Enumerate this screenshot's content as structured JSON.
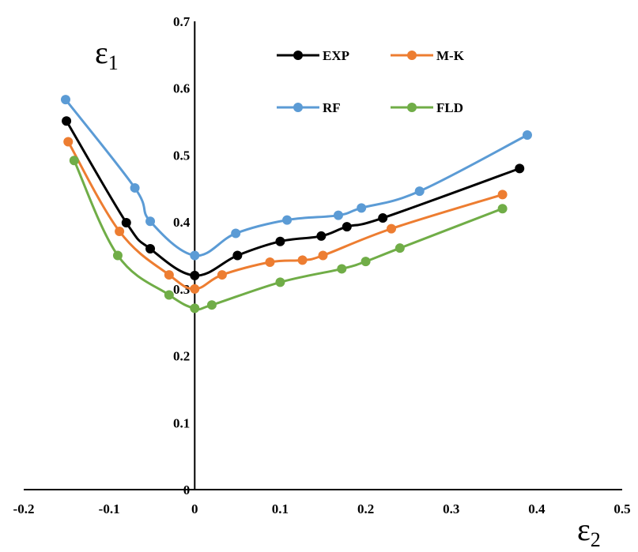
{
  "chart_data": {
    "type": "line",
    "title": "",
    "xlabel": {
      "base": "ε",
      "sub": "2"
    },
    "ylabel": {
      "base": "ε",
      "sub": "1"
    },
    "xlim": [
      -0.2,
      0.5
    ],
    "ylim": [
      0,
      0.7
    ],
    "x_ticks": [
      -0.2,
      -0.1,
      0,
      0.1,
      0.2,
      0.3,
      0.4,
      0.5
    ],
    "y_ticks": [
      0,
      0.1,
      0.2,
      0.3,
      0.4,
      0.5,
      0.6,
      0.7
    ],
    "grid": false,
    "legend_position": "top-center",
    "series": [
      {
        "name": "EXP",
        "color": "#000000",
        "x": [
          -0.15,
          -0.08,
          -0.052,
          0,
          0.05,
          0.1,
          0.148,
          0.178,
          0.22,
          0.38
        ],
        "y": [
          0.551,
          0.399,
          0.36,
          0.32,
          0.35,
          0.371,
          0.379,
          0.393,
          0.406,
          0.48
        ]
      },
      {
        "name": "M-K",
        "color": "#ED7D31",
        "x": [
          -0.148,
          -0.088,
          -0.03,
          0,
          0.032,
          0.088,
          0.126,
          0.15,
          0.23,
          0.36
        ],
        "y": [
          0.52,
          0.386,
          0.321,
          0.3,
          0.321,
          0.34,
          0.343,
          0.35,
          0.39,
          0.441
        ]
      },
      {
        "name": "RF",
        "color": "#5B9BD5",
        "x": [
          -0.151,
          -0.07,
          -0.052,
          0,
          0.048,
          0.108,
          0.168,
          0.195,
          0.263,
          0.389
        ],
        "y": [
          0.583,
          0.451,
          0.401,
          0.35,
          0.383,
          0.403,
          0.41,
          0.421,
          0.446,
          0.53
        ]
      },
      {
        "name": "FLD",
        "color": "#70AD47",
        "x": [
          -0.141,
          -0.09,
          -0.03,
          0,
          0.02,
          0.1,
          0.172,
          0.2,
          0.24,
          0.36
        ],
        "y": [
          0.492,
          0.35,
          0.291,
          0.271,
          0.276,
          0.31,
          0.33,
          0.341,
          0.361,
          0.42
        ]
      }
    ]
  }
}
